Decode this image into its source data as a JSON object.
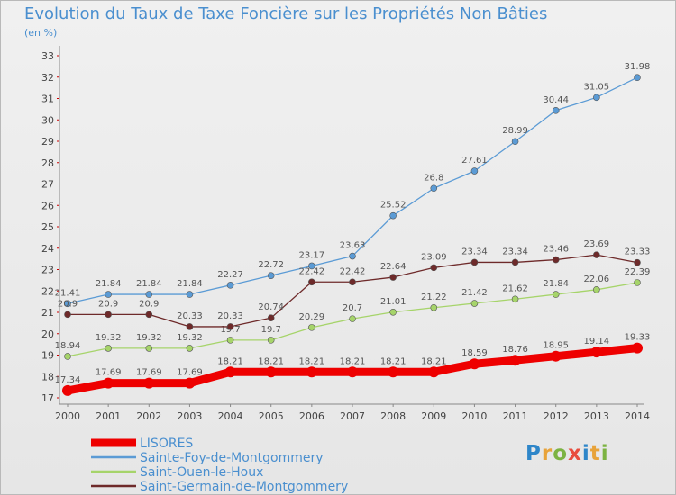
{
  "title": "Evolution du Taux de Taxe Foncière sur les Propriétés Non Bâties",
  "unit": "(en %)",
  "logo": "Proxiti",
  "chart_data": {
    "type": "line",
    "title": "Evolution du Taux de Taxe Foncière sur les Propriétés Non Bâties",
    "ylabel": "(en %)",
    "xlabel": "",
    "ylim": [
      17,
      33
    ],
    "y_ticks": [
      17,
      18,
      19,
      20,
      21,
      22,
      23,
      24,
      25,
      26,
      27,
      28,
      29,
      30,
      31,
      32,
      33
    ],
    "grid": false,
    "legend_position": "bottom-left",
    "x": [
      "2000",
      "2001",
      "2002",
      "2003",
      "2004",
      "2005",
      "2006",
      "2007",
      "2008",
      "2009",
      "2010",
      "2011",
      "2012",
      "2013",
      "2014"
    ],
    "series": [
      {
        "name": "LISORES",
        "color": "#ee0000",
        "emphasis": true,
        "values": [
          17.34,
          17.69,
          17.69,
          17.69,
          18.21,
          18.21,
          18.21,
          18.21,
          18.21,
          18.21,
          18.59,
          18.76,
          18.95,
          19.14,
          19.33
        ]
      },
      {
        "name": "Sainte-Foy-de-Montgommery",
        "color": "#5b9bd5",
        "values": [
          21.41,
          21.84,
          21.84,
          21.84,
          22.27,
          22.72,
          23.17,
          23.63,
          25.52,
          26.8,
          27.61,
          28.99,
          30.44,
          31.05,
          31.98
        ]
      },
      {
        "name": "Saint-Ouen-le-Houx",
        "color": "#a6d46a",
        "values": [
          18.94,
          19.32,
          19.32,
          19.32,
          19.7,
          19.7,
          20.29,
          20.7,
          21.01,
          21.22,
          21.42,
          21.62,
          21.84,
          22.06,
          22.39
        ]
      },
      {
        "name": "Saint-Germain-de-Montgommery",
        "color": "#6e2a2a",
        "values": [
          20.9,
          20.9,
          20.9,
          20.33,
          20.33,
          20.74,
          22.42,
          22.42,
          22.64,
          23.09,
          23.34,
          23.34,
          23.46,
          23.69,
          23.33
        ]
      }
    ],
    "data_labels": {
      "LISORES": [
        "17.34",
        "17.69",
        "17.69",
        "17.69",
        "18.21",
        "18.21",
        "18.21",
        "18.21",
        "18.21",
        "18.21",
        "18.59",
        "18.76",
        "18.95",
        "19.14",
        "19.33"
      ],
      "Sainte-Foy-de-Montgommery": [
        "21.41",
        "21.84",
        "21.84",
        "21.84",
        "22.27",
        "22.72",
        "23.17",
        "23.63",
        "25.52",
        "26.8",
        "27.61",
        "28.99",
        "30.44",
        "31.05",
        "31.98"
      ],
      "Saint-Ouen-le-Houx": [
        "18.94",
        "19.32",
        "19.32",
        "19.32",
        "19.7",
        "19.7",
        "20.29",
        "20.7",
        "21.01",
        "21.22",
        "21.42",
        "21.62",
        "21.84",
        "22.06",
        "22.39"
      ],
      "Saint-Germain-de-Montgommery": [
        "20.9",
        "20.9",
        "20.9",
        "20.33",
        "20.33",
        "20.74",
        "22.42",
        "22.42",
        "22.64",
        "23.09",
        "23.34",
        "23.34",
        "23.46",
        "23.69",
        "23.33"
      ]
    }
  }
}
